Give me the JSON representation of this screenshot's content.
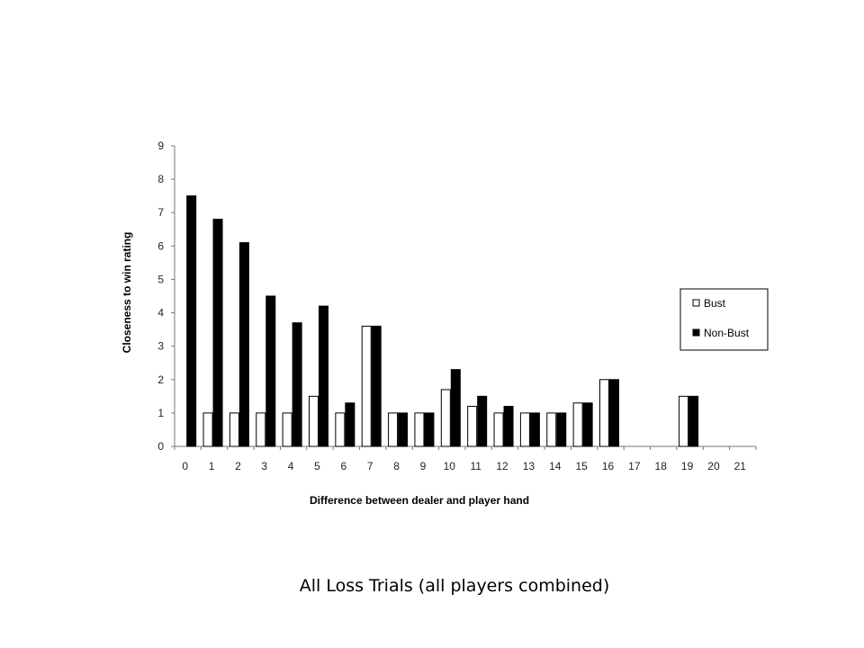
{
  "caption": "All Loss Trials (all players combined)",
  "chart_data": {
    "type": "bar",
    "xlabel": "Difference between dealer and player hand",
    "ylabel": "Closeness to win rating",
    "ylim": [
      0,
      9
    ],
    "yticks": [
      0,
      1,
      2,
      3,
      4,
      5,
      6,
      7,
      8,
      9
    ],
    "categories": [
      "0",
      "1",
      "2",
      "3",
      "4",
      "5",
      "6",
      "7",
      "8",
      "9",
      "10",
      "11",
      "12",
      "13",
      "14",
      "15",
      "16",
      "17",
      "18",
      "19",
      "20",
      "21"
    ],
    "legend_position": "right",
    "series": [
      {
        "name": "Bust",
        "color": "#ffffff",
        "values": [
          null,
          1.0,
          1.0,
          1.0,
          1.0,
          1.5,
          1.0,
          3.6,
          1.0,
          1.0,
          1.7,
          1.2,
          1.0,
          1.0,
          1.0,
          1.3,
          2.0,
          null,
          null,
          1.5,
          null,
          null
        ]
      },
      {
        "name": "Non-Bust",
        "color": "#000000",
        "values": [
          7.5,
          6.8,
          6.1,
          4.5,
          3.7,
          4.2,
          1.3,
          3.6,
          1.0,
          1.0,
          2.3,
          1.5,
          1.2,
          1.0,
          1.0,
          1.3,
          2.0,
          null,
          null,
          1.5,
          null,
          null
        ]
      }
    ]
  }
}
